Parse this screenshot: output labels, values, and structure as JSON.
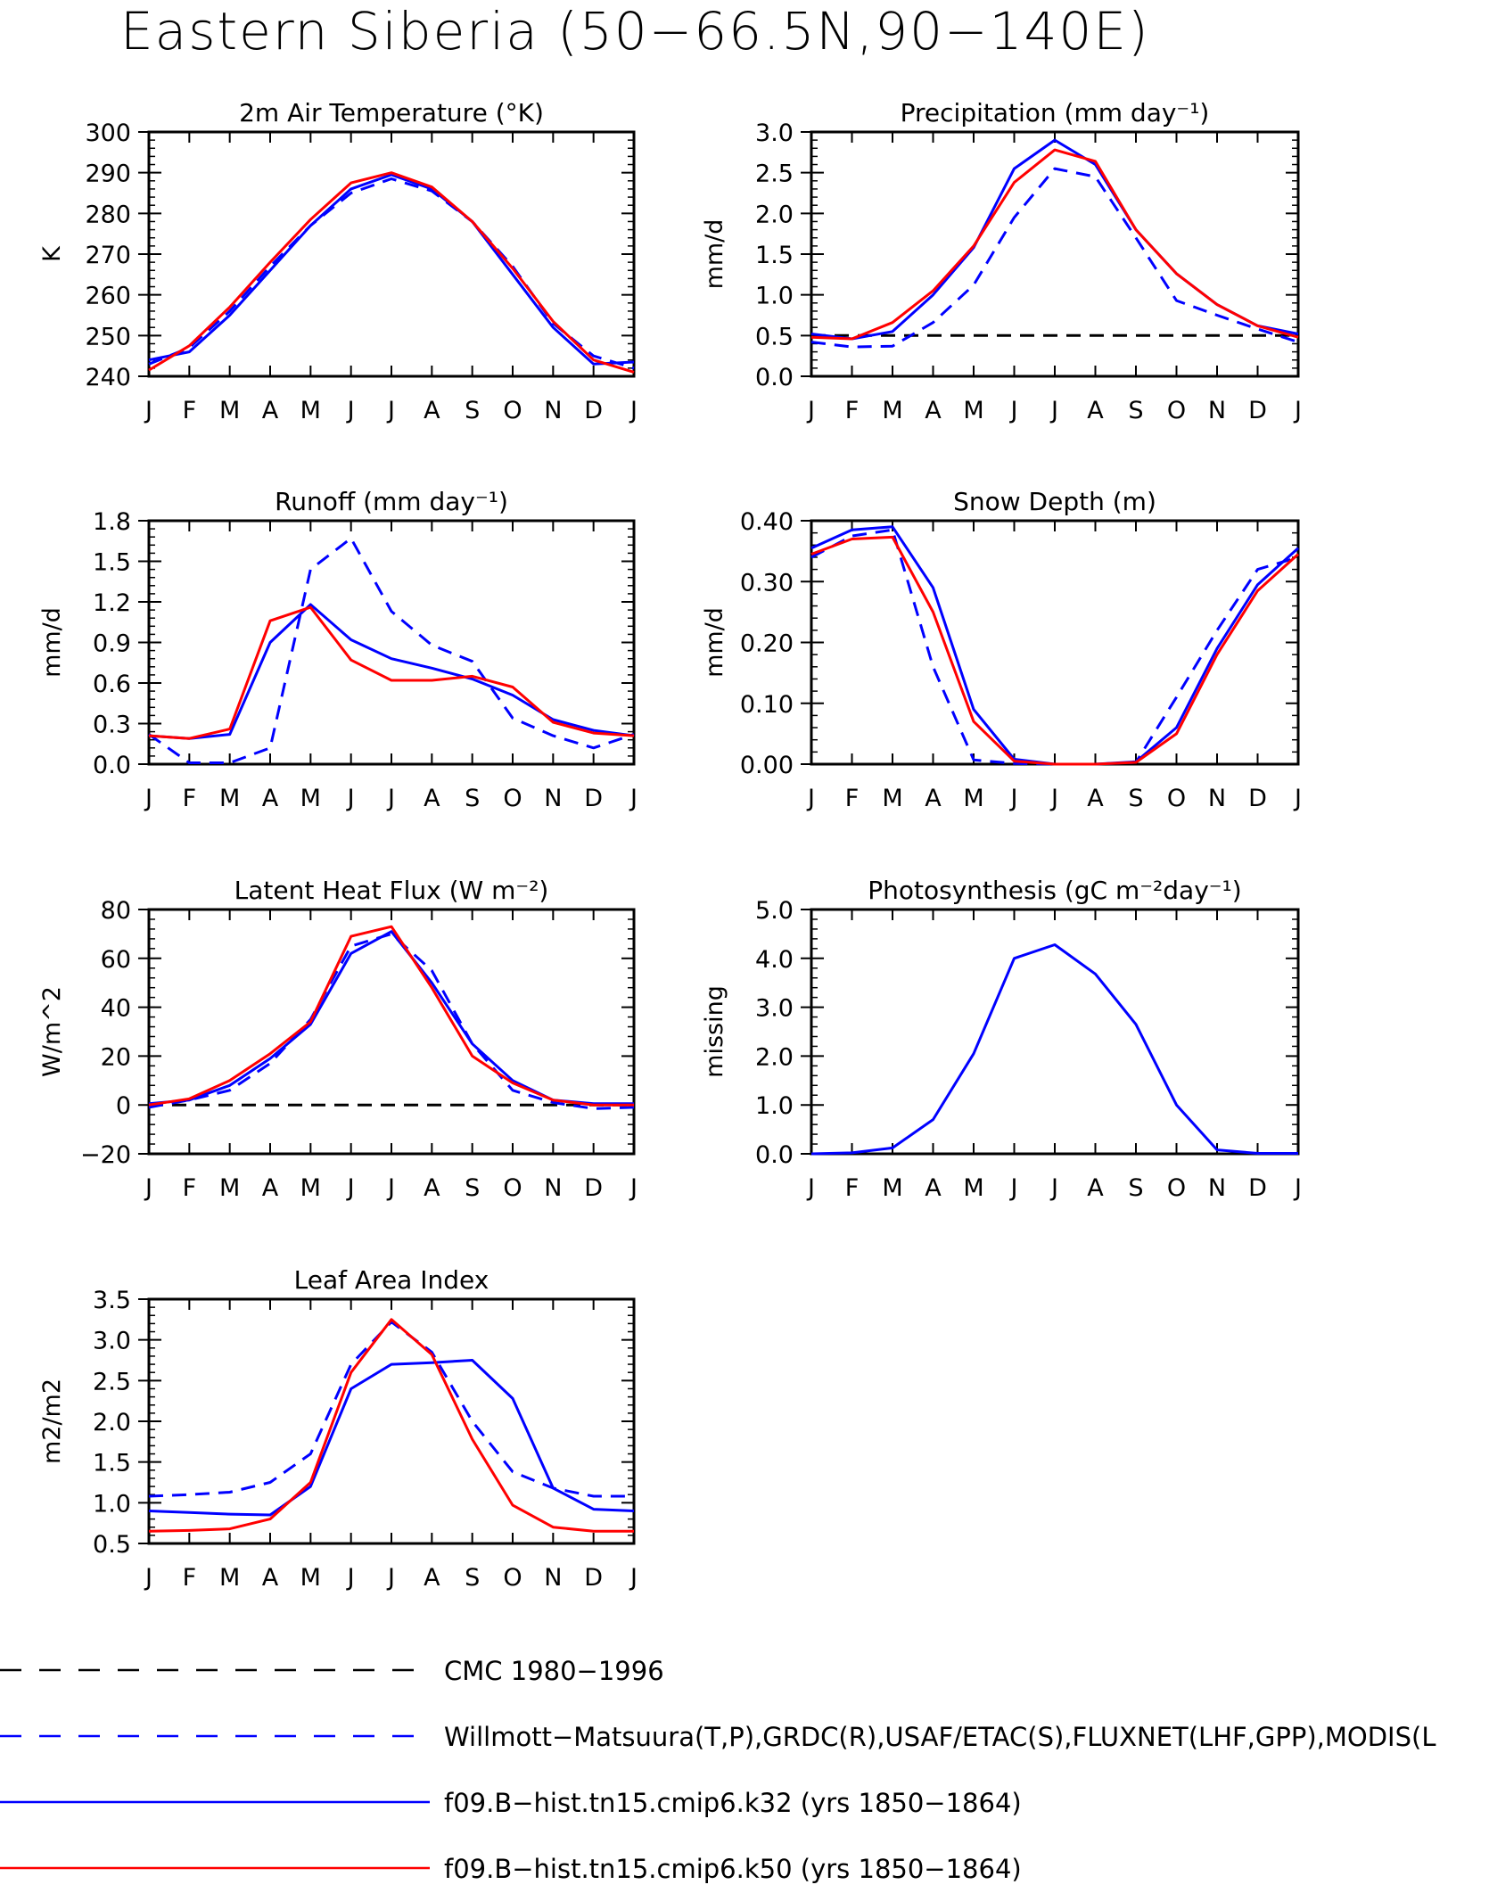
{
  "page": {
    "title": "Eastern Siberia (50−66.5N,90−140E)"
  },
  "colors": {
    "cmc": "#000000",
    "obs": "#0000ff",
    "k32": "#0000ff",
    "k50": "#ff0000"
  },
  "legend": [
    {
      "key": "cmc",
      "label": "CMC 1980−1996",
      "color": "#000000",
      "dashed": true
    },
    {
      "key": "obs",
      "label": "Willmott−Matsuura(T,P),GRDC(R),USAF/ETAC(S),FLUXNET(LHF,GPP),MODIS(L",
      "color": "#0000ff",
      "dashed": true
    },
    {
      "key": "k32",
      "label": "f09.B−hist.tn15.cmip6.k32 (yrs 1850−1864)",
      "color": "#0000ff",
      "dashed": false
    },
    {
      "key": "k50",
      "label": "f09.B−hist.tn15.cmip6.k50 (yrs 1850−1864)",
      "color": "#ff0000",
      "dashed": false
    }
  ],
  "chart_data": [
    {
      "type": "line",
      "title": "2m Air Temperature (°K)",
      "ylabel": "K",
      "categories": [
        "J",
        "F",
        "M",
        "A",
        "M",
        "J",
        "J",
        "A",
        "S",
        "O",
        "N",
        "D",
        "J"
      ],
      "ylim": [
        240,
        300
      ],
      "yticks": [
        240,
        250,
        260,
        270,
        280,
        290,
        300
      ],
      "ytick_labels": [
        "240",
        "250",
        "260",
        "270",
        "280",
        "290",
        "300"
      ],
      "series": [
        {
          "key": "obs",
          "values": [
            243,
            247,
            256,
            267,
            277,
            285,
            288.5,
            285.5,
            278,
            267,
            253,
            245,
            242
          ]
        },
        {
          "key": "k32",
          "values": [
            244,
            246,
            255,
            266,
            277,
            286,
            289.5,
            286,
            278,
            265,
            252,
            243,
            243.5
          ]
        },
        {
          "key": "k50",
          "values": [
            241.5,
            247.5,
            257,
            268,
            278.5,
            287.5,
            290,
            286.5,
            278,
            266.5,
            253.5,
            244,
            241
          ]
        }
      ]
    },
    {
      "type": "line",
      "title": "Precipitation (mm day⁻¹)",
      "ylabel": "mm/d",
      "categories": [
        "J",
        "F",
        "M",
        "A",
        "M",
        "J",
        "J",
        "A",
        "S",
        "O",
        "N",
        "D",
        "J"
      ],
      "ylim": [
        0,
        3
      ],
      "yticks": [
        0,
        0.5,
        1,
        1.5,
        2,
        2.5,
        3
      ],
      "ytick_labels": [
        "0.0",
        "0.5",
        "1.0",
        "1.5",
        "2.0",
        "2.5",
        "3.0"
      ],
      "series": [
        {
          "key": "cmc",
          "values": [
            0.5,
            0.5,
            0.5,
            0.5,
            0.5,
            0.5,
            0.5,
            0.5,
            0.5,
            0.5,
            0.5,
            0.5,
            0.5
          ]
        },
        {
          "key": "obs",
          "values": [
            0.42,
            0.36,
            0.37,
            0.66,
            1.12,
            1.95,
            2.55,
            2.45,
            1.7,
            0.93,
            0.75,
            0.58,
            0.42
          ]
        },
        {
          "key": "k32",
          "values": [
            0.52,
            0.46,
            0.55,
            1.0,
            1.58,
            2.55,
            2.9,
            2.6,
            1.8,
            1.26,
            0.88,
            0.62,
            0.52
          ]
        },
        {
          "key": "k50",
          "values": [
            0.48,
            0.46,
            0.66,
            1.05,
            1.6,
            2.38,
            2.78,
            2.64,
            1.8,
            1.26,
            0.88,
            0.62,
            0.48
          ]
        }
      ]
    },
    {
      "type": "line",
      "title": "Runoff (mm day⁻¹)",
      "ylabel": "mm/d",
      "categories": [
        "J",
        "F",
        "M",
        "A",
        "M",
        "J",
        "J",
        "A",
        "S",
        "O",
        "N",
        "D",
        "J"
      ],
      "ylim": [
        0,
        1.8
      ],
      "yticks": [
        0,
        0.3,
        0.6,
        0.9,
        1.2,
        1.5,
        1.8
      ],
      "ytick_labels": [
        "0.0",
        "0.3",
        "0.6",
        "0.9",
        "1.2",
        "1.5",
        "1.8"
      ],
      "series": [
        {
          "key": "obs",
          "values": [
            0.22,
            0.01,
            0.01,
            0.12,
            1.44,
            1.67,
            1.13,
            0.88,
            0.76,
            0.34,
            0.21,
            0.12,
            0.22
          ]
        },
        {
          "key": "k32",
          "values": [
            0.21,
            0.19,
            0.22,
            0.9,
            1.18,
            0.92,
            0.78,
            0.71,
            0.63,
            0.51,
            0.33,
            0.25,
            0.21
          ]
        },
        {
          "key": "k50",
          "values": [
            0.21,
            0.19,
            0.26,
            1.06,
            1.16,
            0.77,
            0.62,
            0.62,
            0.65,
            0.57,
            0.31,
            0.23,
            0.21
          ]
        }
      ]
    },
    {
      "type": "line",
      "title": "Snow Depth (m)",
      "ylabel": "mm/d",
      "categories": [
        "J",
        "F",
        "M",
        "A",
        "M",
        "J",
        "J",
        "A",
        "S",
        "O",
        "N",
        "D",
        "J"
      ],
      "ylim": [
        0,
        0.4
      ],
      "yticks": [
        0,
        0.1,
        0.2,
        0.3,
        0.4
      ],
      "ytick_labels": [
        "0.00",
        "0.10",
        "0.20",
        "0.30",
        "0.40"
      ],
      "series": [
        {
          "key": "cmc",
          "values": [
            0,
            0,
            0,
            0,
            0,
            0,
            0,
            0,
            0,
            0,
            0,
            0,
            0
          ]
        },
        {
          "key": "obs",
          "values": [
            0.34,
            0.375,
            0.385,
            0.16,
            0.007,
            0.001,
            0,
            0,
            0.003,
            0.11,
            0.22,
            0.32,
            0.34
          ]
        },
        {
          "key": "k32",
          "values": [
            0.355,
            0.385,
            0.39,
            0.29,
            0.09,
            0.008,
            0,
            0,
            0.004,
            0.06,
            0.19,
            0.295,
            0.355
          ]
        },
        {
          "key": "k50",
          "values": [
            0.345,
            0.37,
            0.373,
            0.25,
            0.07,
            0.005,
            0,
            0,
            0.003,
            0.05,
            0.18,
            0.285,
            0.345
          ]
        }
      ]
    },
    {
      "type": "line",
      "title": "Latent Heat Flux (W m⁻²)",
      "ylabel": "W/m^2",
      "categories": [
        "J",
        "F",
        "M",
        "A",
        "M",
        "J",
        "J",
        "A",
        "S",
        "O",
        "N",
        "D",
        "J"
      ],
      "ylim": [
        -20,
        80
      ],
      "yticks": [
        -20,
        0,
        20,
        40,
        60,
        80
      ],
      "ytick_labels": [
        "−20",
        "0",
        "20",
        "40",
        "60",
        "80"
      ],
      "series": [
        {
          "key": "cmc",
          "values": [
            0,
            0,
            0,
            0,
            0,
            0,
            0,
            0,
            0,
            0,
            0,
            0,
            0
          ]
        },
        {
          "key": "obs",
          "values": [
            -1,
            2,
            6,
            17,
            35,
            65,
            70,
            55,
            25,
            6,
            1,
            -1.5,
            -1
          ]
        },
        {
          "key": "k32",
          "values": [
            0.5,
            2,
            8,
            19,
            33,
            62,
            71,
            50,
            25,
            10,
            2,
            0.5,
            0.5
          ]
        },
        {
          "key": "k50",
          "values": [
            0,
            2.5,
            10,
            21,
            34,
            69,
            73,
            48,
            20,
            9,
            2,
            0,
            0
          ]
        }
      ]
    },
    {
      "type": "line",
      "title": "Photosynthesis (gC m⁻²day⁻¹)",
      "ylabel": "missing",
      "categories": [
        "J",
        "F",
        "M",
        "A",
        "M",
        "J",
        "J",
        "A",
        "S",
        "O",
        "N",
        "D",
        "J"
      ],
      "ylim": [
        0,
        5
      ],
      "yticks": [
        0,
        1,
        2,
        3,
        4,
        5
      ],
      "ytick_labels": [
        "0.0",
        "1.0",
        "2.0",
        "3.0",
        "4.0",
        "5.0"
      ],
      "series": [
        {
          "key": "k32",
          "values": [
            0,
            0.02,
            0.12,
            0.7,
            2.05,
            4.0,
            4.28,
            3.68,
            2.65,
            1.0,
            0.08,
            0.01,
            0.01
          ]
        }
      ]
    },
    {
      "type": "line",
      "title": "Leaf Area Index",
      "ylabel": "m2/m2",
      "categories": [
        "J",
        "F",
        "M",
        "A",
        "M",
        "J",
        "J",
        "A",
        "S",
        "O",
        "N",
        "D",
        "J"
      ],
      "ylim": [
        0.5,
        3.5
      ],
      "yticks": [
        0.5,
        1,
        1.5,
        2,
        2.5,
        3,
        3.5
      ],
      "ytick_labels": [
        "0.5",
        "1.0",
        "1.5",
        "2.0",
        "2.5",
        "3.0",
        "3.5"
      ],
      "series": [
        {
          "key": "obs",
          "values": [
            1.08,
            1.1,
            1.13,
            1.25,
            1.6,
            2.7,
            3.22,
            2.85,
            2.0,
            1.38,
            1.18,
            1.08,
            1.08
          ]
        },
        {
          "key": "k32",
          "values": [
            0.9,
            0.88,
            0.86,
            0.85,
            1.2,
            2.4,
            2.7,
            2.72,
            2.75,
            2.28,
            1.18,
            0.92,
            0.9
          ]
        },
        {
          "key": "k50",
          "values": [
            0.65,
            0.66,
            0.68,
            0.8,
            1.25,
            2.6,
            3.25,
            2.82,
            1.78,
            0.97,
            0.7,
            0.65,
            0.65
          ]
        }
      ]
    }
  ]
}
